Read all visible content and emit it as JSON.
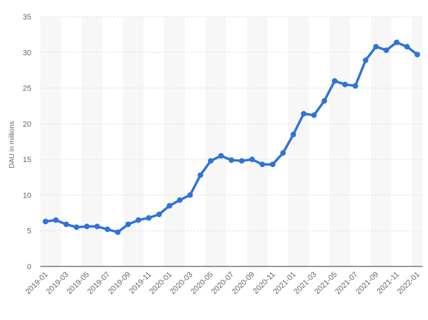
{
  "chart_data": {
    "type": "line",
    "ylabel": "DAU in millions",
    "ylim": [
      0,
      35
    ],
    "yticks": [
      0,
      5,
      10,
      15,
      20,
      25,
      30,
      35
    ],
    "grid": "horizontal",
    "x": [
      "2019-01",
      "2019-02",
      "2019-03",
      "2019-04",
      "2019-05",
      "2019-06",
      "2019-07",
      "2019-08",
      "2019-09",
      "2019-10",
      "2019-11",
      "2019-12",
      "2020-01",
      "2020-02",
      "2020-03",
      "2020-04",
      "2020-05",
      "2020-06",
      "2020-07",
      "2020-08",
      "2020-09",
      "2020-10",
      "2020-11",
      "2020-12",
      "2021-01",
      "2021-02",
      "2021-03",
      "2021-04",
      "2021-05",
      "2021-06",
      "2021-07",
      "2021-08",
      "2021-09",
      "2021-10",
      "2021-11",
      "2021-12",
      "2022-01"
    ],
    "xtick_labels": [
      "2019-01",
      "2019-03",
      "2019-05",
      "2019-07",
      "2019-09",
      "2019-11",
      "2020-01",
      "2020-03",
      "2020-05",
      "2020-07",
      "2020-09",
      "2020-11",
      "2021-01",
      "2021-03",
      "2021-05",
      "2021-07",
      "2021-09",
      "2021-11",
      "2022-01"
    ],
    "series": [
      {
        "values": [
          6.3,
          6.5,
          5.9,
          5.5,
          5.6,
          5.6,
          5.2,
          4.8,
          5.9,
          6.5,
          6.8,
          7.3,
          8.5,
          9.3,
          10.0,
          12.8,
          14.8,
          15.5,
          14.9,
          14.8,
          15.0,
          14.3,
          14.3,
          15.9,
          18.5,
          21.4,
          21.2,
          23.2,
          26.0,
          25.5,
          25.3,
          28.9,
          30.8,
          30.3,
          31.4,
          30.8,
          29.7
        ],
        "color": "#2f73d8"
      }
    ]
  }
}
